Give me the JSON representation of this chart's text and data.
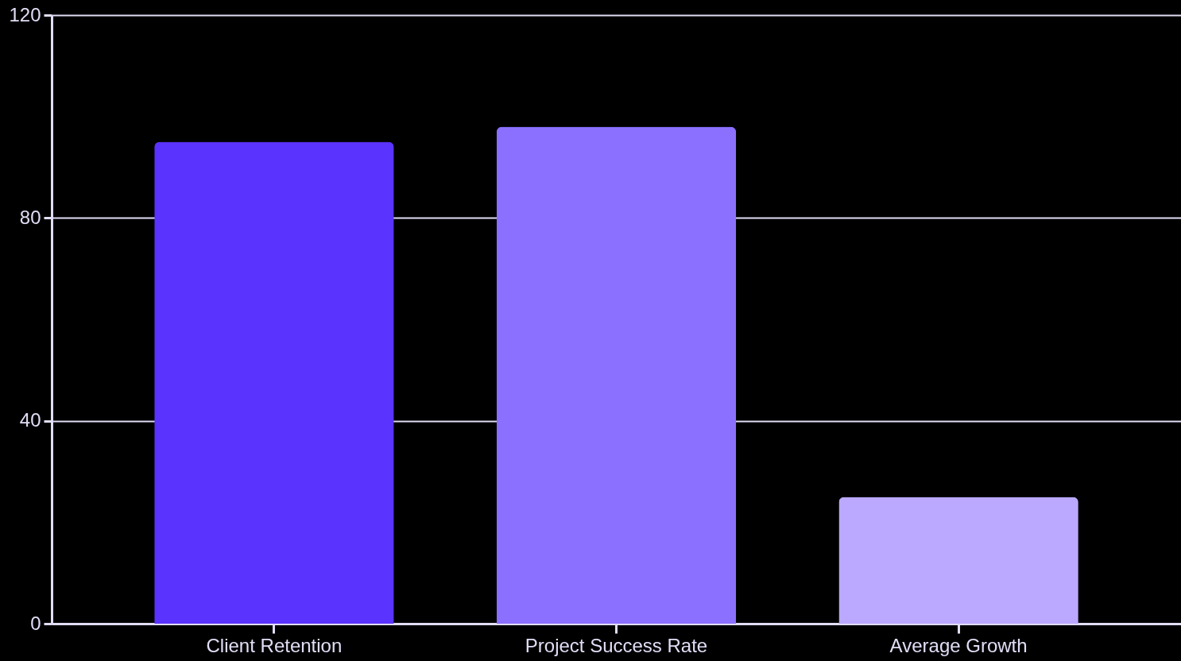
{
  "chart_data": {
    "type": "bar",
    "categories": [
      "Client Retention",
      "Project Success Rate",
      "Average Growth"
    ],
    "values": [
      95,
      98,
      25
    ],
    "colors": [
      "#5b33ff",
      "#8b70ff",
      "#bba8ff"
    ],
    "ylim": [
      0,
      120
    ],
    "yticks": [
      0,
      40,
      80,
      120
    ],
    "grid": "y"
  }
}
